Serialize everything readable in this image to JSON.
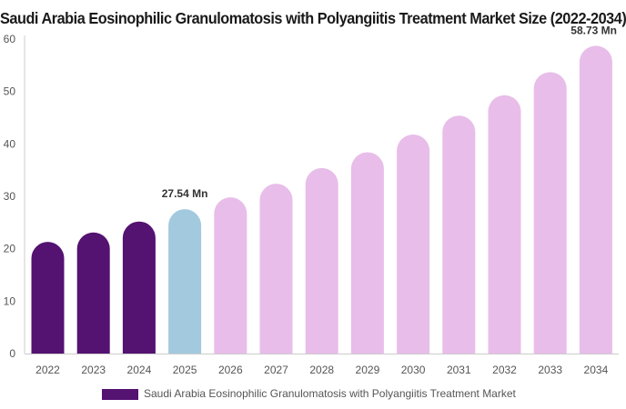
{
  "chart_data": {
    "type": "bar",
    "title": "Saudi Arabia Eosinophilic Granulomatosis with Polyangiitis Treatment Market Size (2022-2034)",
    "categories": [
      "2022",
      "2023",
      "2024",
      "2025",
      "2026",
      "2027",
      "2028",
      "2029",
      "2030",
      "2031",
      "2032",
      "2033",
      "2034"
    ],
    "series": [
      {
        "name": "Saudi Arabia Eosinophilic Granulomatosis with Polyangiitis Treatment Market",
        "values": [
          21.3,
          23.1,
          25.2,
          27.54,
          29.8,
          32.4,
          35.4,
          38.4,
          41.8,
          45.4,
          49.3,
          53.7,
          58.73
        ]
      }
    ],
    "data_labels": [
      {
        "category": "2025",
        "text": "27.54 Mn"
      },
      {
        "category": "2034",
        "text": "58.73 Mn"
      }
    ],
    "ylim": [
      0,
      60
    ],
    "yticks": [
      0,
      10,
      20,
      30,
      40,
      50,
      60
    ],
    "xlabel": "",
    "ylabel": "",
    "grid": false,
    "legend_position": "bottom",
    "colors": {
      "historical": "#541271",
      "base_year": "#a3c9de",
      "forecast": "#e8bde9",
      "axis": "#cccccc"
    },
    "color_groups": [
      "historical",
      "historical",
      "historical",
      "base_year",
      "forecast",
      "forecast",
      "forecast",
      "forecast",
      "forecast",
      "forecast",
      "forecast",
      "forecast",
      "forecast"
    ]
  }
}
